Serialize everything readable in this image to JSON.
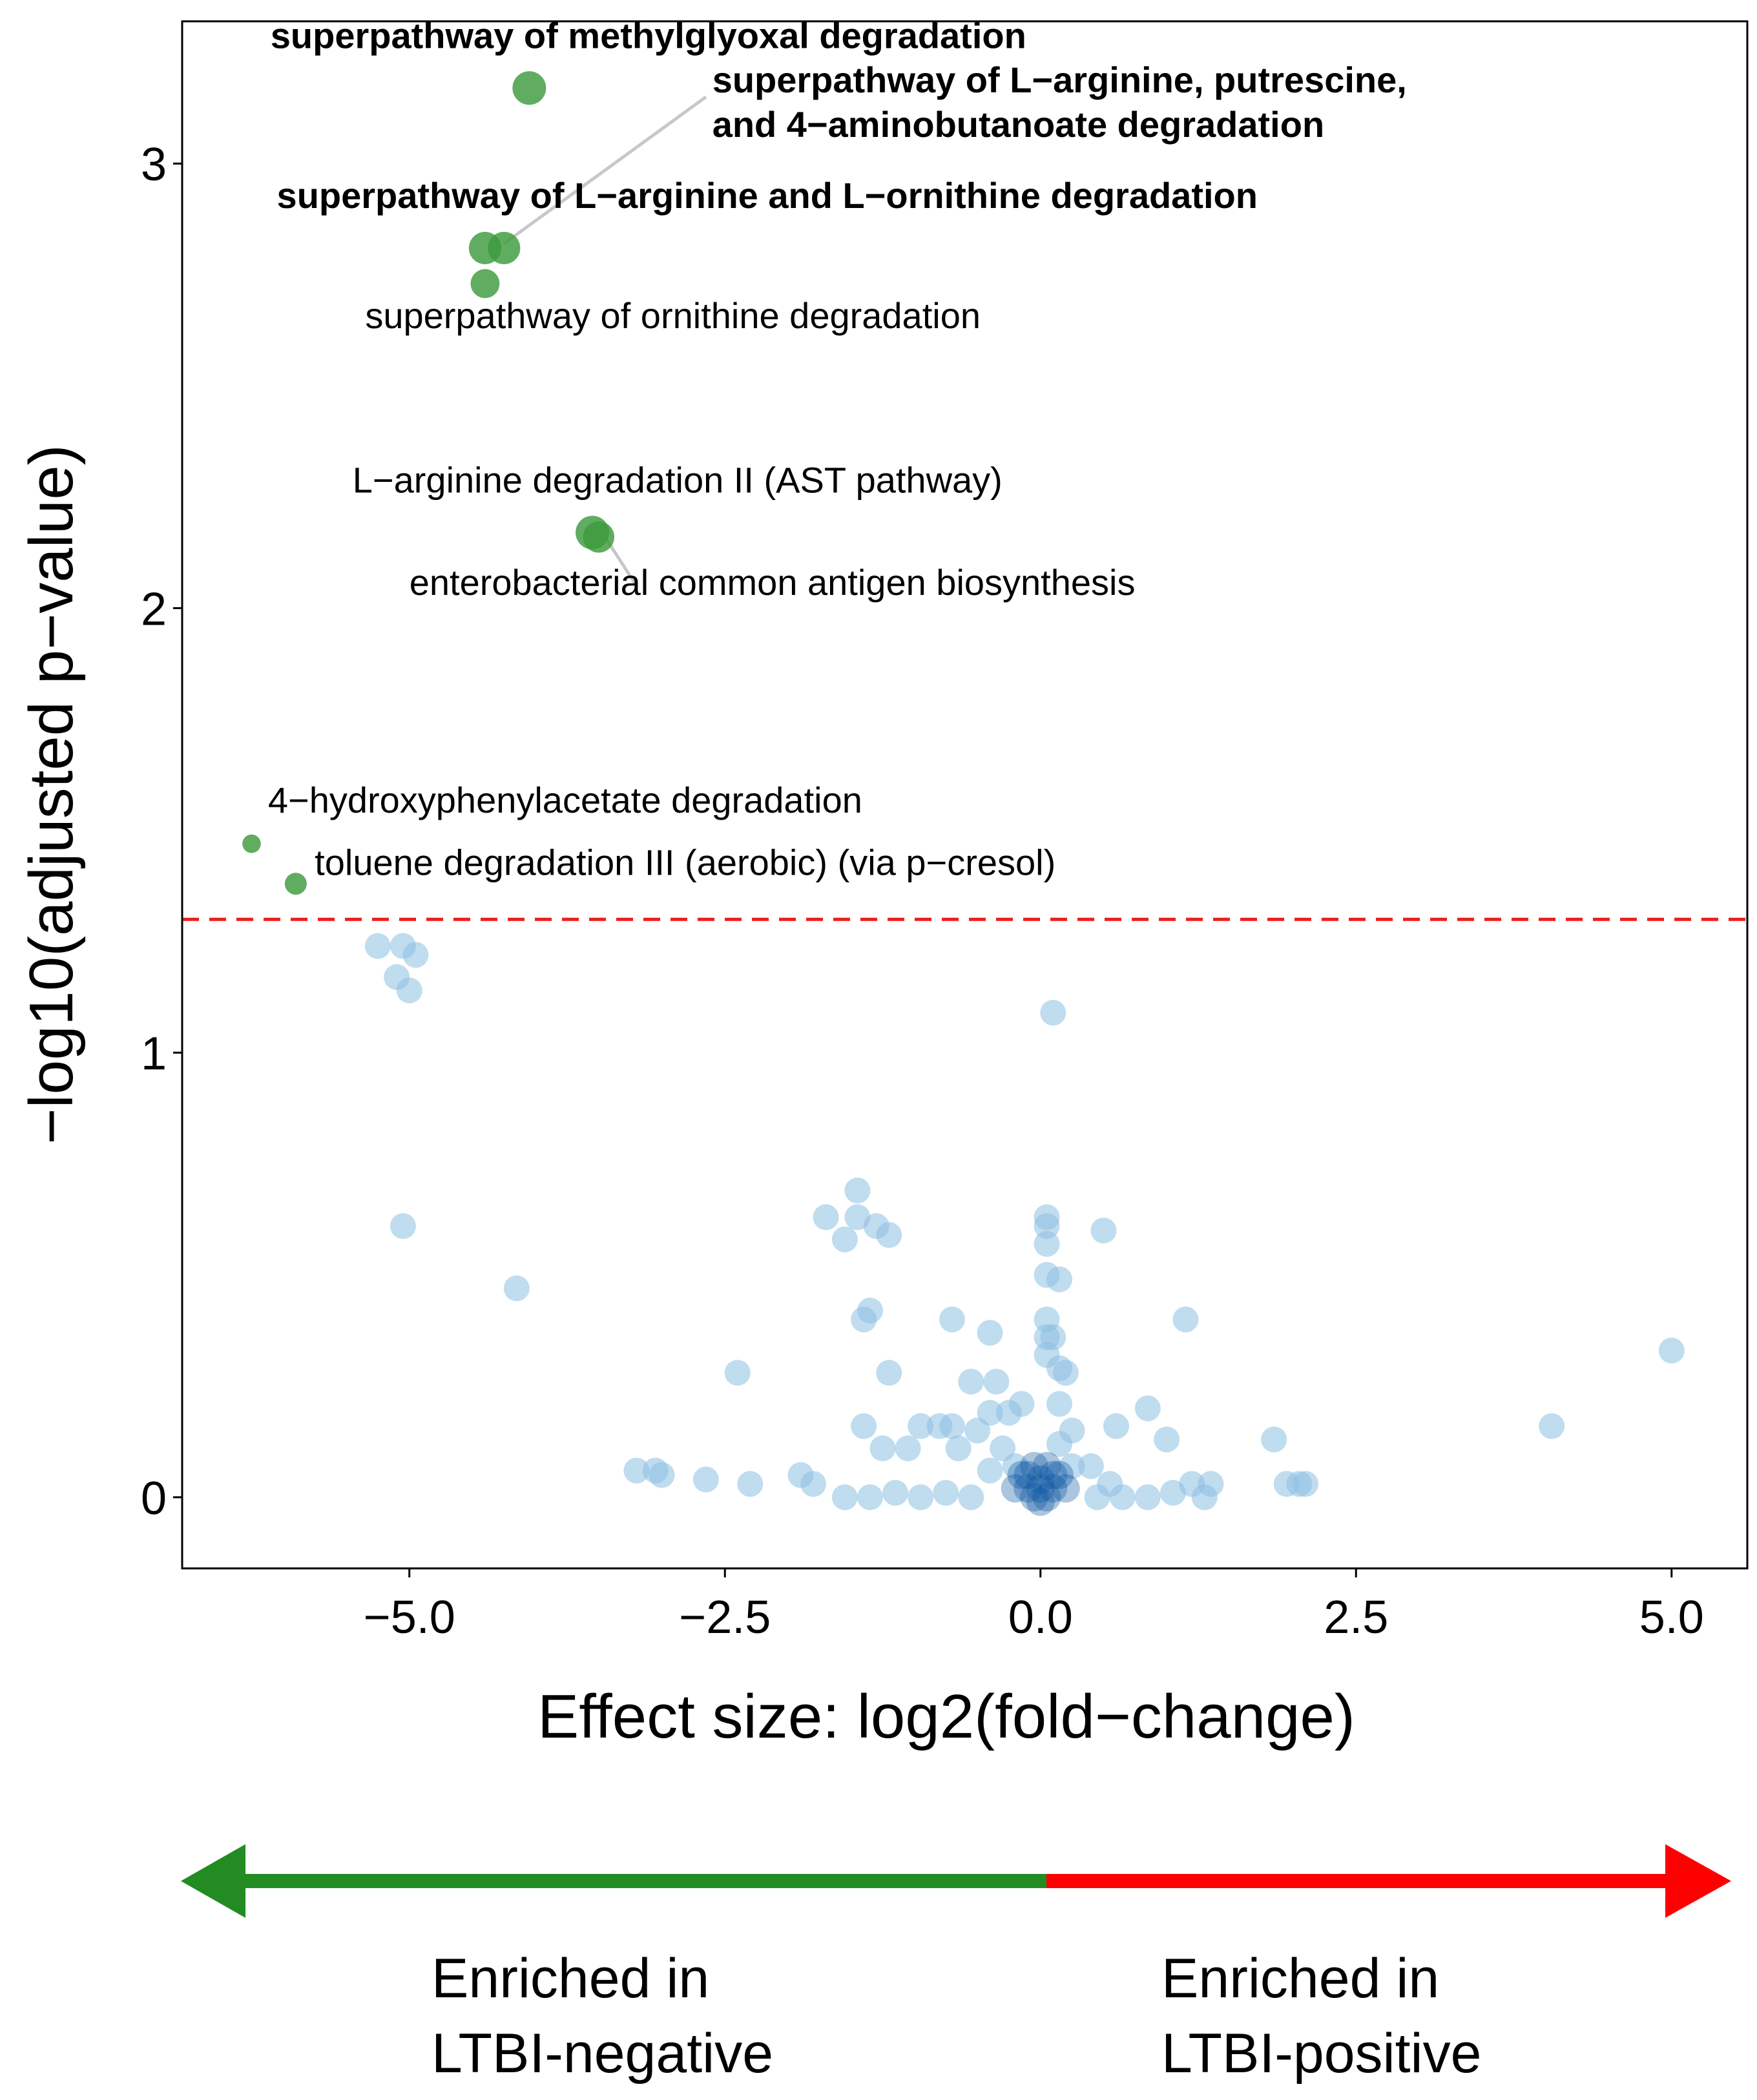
{
  "chart_data": {
    "type": "scatter",
    "title": "",
    "xlabel": "Effect size: log2(fold−change)",
    "ylabel": "−log10(adjusted p−value)",
    "xlim": [
      -6.8,
      5.6
    ],
    "ylim": [
      -0.16,
      3.32
    ],
    "x_ticks": [
      -5.0,
      -2.5,
      0.0,
      2.5,
      5.0
    ],
    "x_tick_labels": [
      "−5.0",
      "−2.5",
      "0.0",
      "2.5",
      "5.0"
    ],
    "y_ticks": [
      0,
      1,
      2,
      3
    ],
    "y_tick_labels": [
      "0",
      "1",
      "2",
      "3"
    ],
    "threshold": {
      "y": 1.3,
      "color": "#ee1c1c",
      "style": "dashed"
    },
    "colors": {
      "significant": "#3d9a3d",
      "nonsignificant": "#8cc0e2",
      "dense_core": "#0e59a2",
      "arrow_left": "#228b22",
      "arrow_right": "#ff0000"
    },
    "significant_points": [
      {
        "x": -4.05,
        "y": 3.17,
        "size": 1.0
      },
      {
        "x": -4.4,
        "y": 2.81,
        "size": 0.95
      },
      {
        "x": -4.25,
        "y": 2.81,
        "size": 0.95
      },
      {
        "x": -4.4,
        "y": 2.73,
        "size": 0.8
      },
      {
        "x": -3.55,
        "y": 2.17,
        "size": 1.0
      },
      {
        "x": -3.5,
        "y": 2.16,
        "size": 0.9
      },
      {
        "x": -6.25,
        "y": 1.47,
        "size": 0.35
      },
      {
        "x": -5.9,
        "y": 1.38,
        "size": 0.5
      }
    ],
    "annotations": [
      {
        "text": "superpathway of methylglyoxal degradation",
        "bold": true,
        "x": -6.1,
        "y": 3.26
      },
      {
        "text": "superpathway of L−arginine, putrescine,",
        "bold": true,
        "x": -2.6,
        "y": 3.16
      },
      {
        "text": "and 4−aminobutanoate degradation",
        "bold": true,
        "x": -2.6,
        "y": 3.06
      },
      {
        "text": "superpathway of L−arginine and L−ornithine degradation",
        "bold": true,
        "x": -6.05,
        "y": 2.9
      },
      {
        "text": "superpathway of ornithine degradation",
        "bold": false,
        "x": -5.35,
        "y": 2.63
      },
      {
        "text": "L−arginine degradation II (AST pathway)",
        "bold": false,
        "x": -5.45,
        "y": 2.26
      },
      {
        "text": "enterobacterial common antigen biosynthesis",
        "bold": false,
        "x": -5.0,
        "y": 2.03
      },
      {
        "text": "4−hydroxyphenylacetate degradation",
        "bold": false,
        "x": -6.12,
        "y": 1.54
      },
      {
        "text": "toluene degradation III (aerobic) (via p−cresol)",
        "bold": false,
        "x": -5.75,
        "y": 1.4
      }
    ],
    "leader_lines": [
      {
        "from": [
          -2.65,
          3.15
        ],
        "to": [
          -4.25,
          2.82
        ]
      },
      {
        "from": [
          -3.2,
          2.05
        ],
        "to": [
          -3.45,
          2.16
        ]
      }
    ],
    "nonsignificant_points": [
      [
        -5.25,
        1.24
      ],
      [
        -5.05,
        1.24
      ],
      [
        -4.95,
        1.22
      ],
      [
        -5.1,
        1.17
      ],
      [
        -5.0,
        1.14
      ],
      [
        -5.05,
        0.61
      ],
      [
        -4.15,
        0.47
      ],
      [
        0.1,
        1.09
      ],
      [
        -1.45,
        0.69
      ],
      [
        -1.7,
        0.63
      ],
      [
        -1.45,
        0.63
      ],
      [
        -1.3,
        0.61
      ],
      [
        -1.2,
        0.59
      ],
      [
        -1.55,
        0.58
      ],
      [
        0.05,
        0.63
      ],
      [
        0.05,
        0.61
      ],
      [
        0.05,
        0.57
      ],
      [
        0.05,
        0.5
      ],
      [
        0.15,
        0.49
      ],
      [
        0.5,
        0.6
      ],
      [
        -1.35,
        0.42
      ],
      [
        -1.4,
        0.4
      ],
      [
        -0.7,
        0.4
      ],
      [
        -0.4,
        0.37
      ],
      [
        1.15,
        0.4
      ],
      [
        5.0,
        0.33
      ],
      [
        -2.4,
        0.28
      ],
      [
        -1.2,
        0.28
      ],
      [
        -0.55,
        0.26
      ],
      [
        -0.35,
        0.26
      ],
      [
        0.05,
        0.4
      ],
      [
        0.05,
        0.36
      ],
      [
        0.05,
        0.32
      ],
      [
        0.1,
        0.36
      ],
      [
        0.15,
        0.29
      ],
      [
        0.2,
        0.28
      ],
      [
        -0.15,
        0.21
      ],
      [
        0.15,
        0.21
      ],
      [
        0.85,
        0.2
      ],
      [
        -0.4,
        0.19
      ],
      [
        -0.25,
        0.19
      ],
      [
        -1.4,
        0.16
      ],
      [
        -0.95,
        0.16
      ],
      [
        -0.7,
        0.16
      ],
      [
        -0.8,
        0.16
      ],
      [
        -0.5,
        0.15
      ],
      [
        0.6,
        0.16
      ],
      [
        0.25,
        0.15
      ],
      [
        -1.25,
        0.11
      ],
      [
        -1.05,
        0.11
      ],
      [
        -0.65,
        0.11
      ],
      [
        -0.3,
        0.11
      ],
      [
        0.15,
        0.12
      ],
      [
        1.0,
        0.13
      ],
      [
        1.85,
        0.13
      ],
      [
        4.05,
        0.16
      ],
      [
        -3.2,
        0.06
      ],
      [
        -3.05,
        0.06
      ],
      [
        -3.0,
        0.05
      ],
      [
        -2.65,
        0.04
      ],
      [
        -2.3,
        0.03
      ],
      [
        -1.9,
        0.05
      ],
      [
        -1.8,
        0.03
      ],
      [
        -1.55,
        0.0
      ],
      [
        -1.35,
        0.0
      ],
      [
        -1.15,
        0.01
      ],
      [
        -0.95,
        0.0
      ],
      [
        -0.75,
        0.01
      ],
      [
        -0.55,
        0.0
      ],
      [
        0.45,
        0.0
      ],
      [
        0.65,
        0.0
      ],
      [
        0.85,
        0.0
      ],
      [
        1.05,
        0.01
      ],
      [
        1.2,
        0.03
      ],
      [
        1.35,
        0.03
      ],
      [
        1.3,
        0.0
      ],
      [
        1.95,
        0.03
      ],
      [
        2.05,
        0.03
      ],
      [
        2.1,
        0.03
      ],
      [
        -0.4,
        0.06
      ],
      [
        -0.2,
        0.07
      ],
      [
        0.25,
        0.07
      ],
      [
        0.4,
        0.07
      ],
      [
        0.55,
        0.03
      ]
    ],
    "dense_core_points": [
      [
        -0.1,
        0.02
      ],
      [
        0.0,
        0.02
      ],
      [
        0.1,
        0.02
      ],
      [
        0.05,
        0.0
      ],
      [
        -0.05,
        0.0
      ],
      [
        0.0,
        0.04
      ],
      [
        -0.15,
        0.05
      ],
      [
        0.15,
        0.05
      ],
      [
        0.05,
        0.07
      ],
      [
        -0.05,
        0.07
      ],
      [
        0.2,
        0.02
      ],
      [
        -0.2,
        0.02
      ],
      [
        0.0,
        -0.01
      ],
      [
        0.1,
        0.05
      ],
      [
        -0.1,
        0.05
      ]
    ],
    "legend_arrow": {
      "left_text_line1": "Enriched in",
      "left_text_line2": "LTBI-negative",
      "right_text_line1": "Enriched in",
      "right_text_line2": "LTBI-positive"
    }
  }
}
